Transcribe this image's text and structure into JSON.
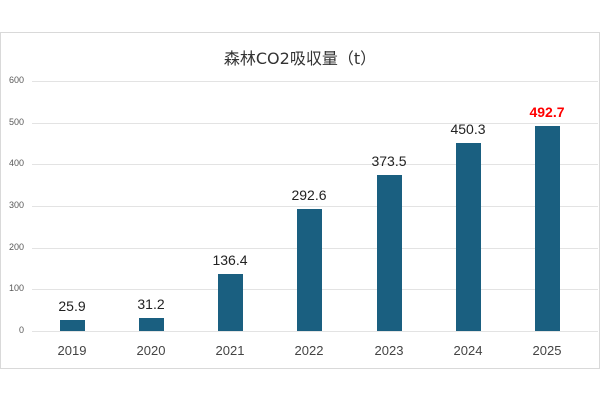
{
  "chart_data": {
    "type": "bar",
    "title": "森林CO2吸収量（t）",
    "xlabel": "",
    "ylabel": "",
    "categories": [
      "2019",
      "2020",
      "2021",
      "2022",
      "2023",
      "2024",
      "2025"
    ],
    "values": [
      25.9,
      31.2,
      136.4,
      292.6,
      373.5,
      450.3,
      492.7
    ],
    "value_labels": [
      "25.9",
      "31.2",
      "136.4",
      "292.6",
      "373.5",
      "450.3",
      "492.7"
    ],
    "highlight_index": 6,
    "ylim": [
      0,
      600
    ],
    "yticks": [
      "0",
      "100",
      "200",
      "300",
      "400",
      "500",
      "600"
    ],
    "grid": true,
    "legend": null
  },
  "colors": {
    "bar": "#1a5f80",
    "highlight_label": "#ff0000",
    "label": "#222222"
  }
}
